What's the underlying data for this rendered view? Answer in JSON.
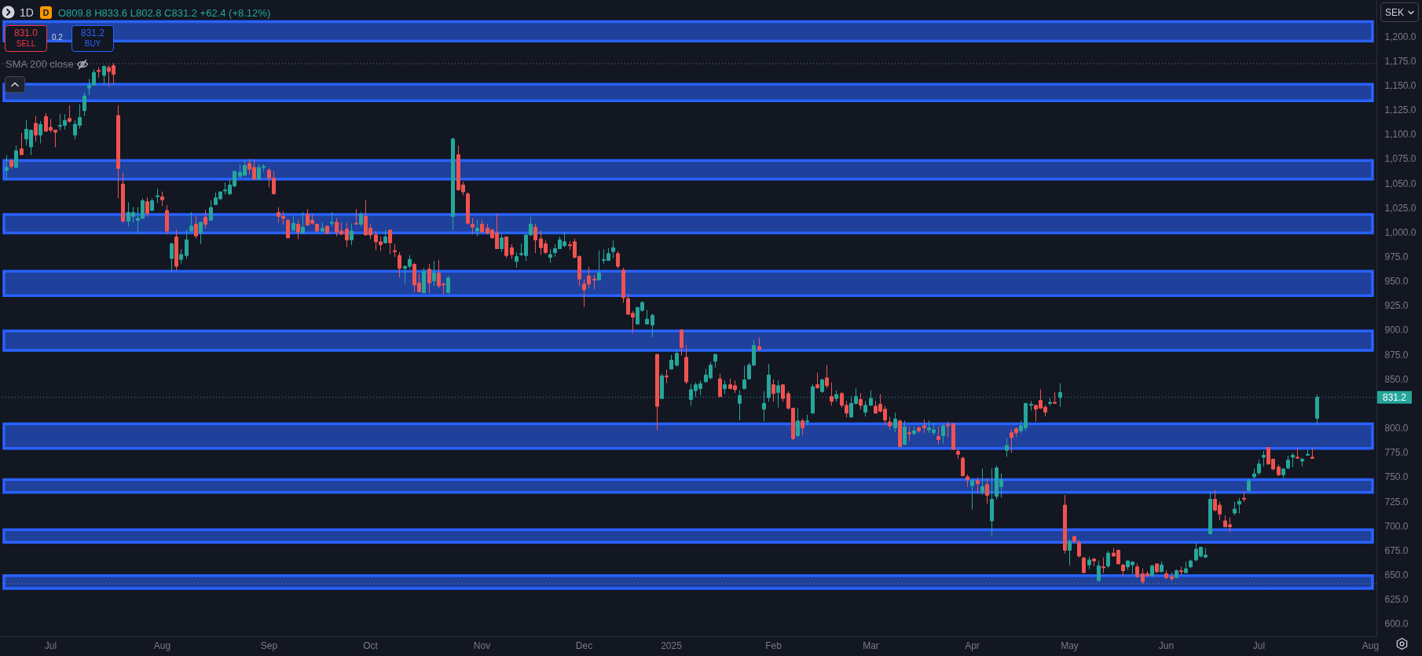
{
  "chart_data": {
    "type": "candlestick",
    "title": "1D",
    "subtitle": "O809.8 H833.6 L802.8 C831.2 +62.4 (+8.12%)",
    "annotations": [
      "D",
      "831.0",
      "SELL",
      "0.2",
      "831.2",
      "BUY",
      "SMA 200 close",
      "SEK"
    ],
    "categories": [
      null,
      null,
      null,
      null,
      null,
      null,
      null,
      null,
      null,
      "Jul",
      null,
      null,
      null,
      null,
      null,
      null,
      null,
      null,
      null,
      null,
      null,
      null,
      null,
      null,
      null,
      null,
      null,
      null,
      null,
      null,
      null,
      null,
      "Aug",
      null,
      null,
      null,
      null,
      null,
      null,
      null,
      null,
      null,
      null,
      null,
      null,
      null,
      null,
      null,
      null,
      null,
      null,
      null,
      null,
      null,
      "Sep",
      null,
      null,
      null,
      null,
      null,
      null,
      null,
      null,
      null,
      null,
      null,
      null,
      null,
      null,
      null,
      null,
      null,
      null,
      null,
      null,
      "Oct",
      null,
      null,
      null,
      null,
      null,
      null,
      null,
      null,
      null,
      null,
      null,
      null,
      null,
      null,
      null,
      null,
      null,
      null,
      null,
      null,
      null,
      null,
      "Nov",
      null,
      null,
      null,
      null,
      null,
      null,
      null,
      null,
      null,
      null,
      null,
      null,
      null,
      null,
      null,
      null,
      null,
      null,
      null,
      null,
      "Dec",
      null,
      null,
      null,
      null,
      null,
      null,
      null,
      null,
      null,
      null,
      null,
      null,
      null,
      null,
      null,
      null,
      null,
      "2025",
      null,
      null,
      null,
      null,
      null,
      null,
      null,
      null,
      null,
      null,
      null,
      null,
      null,
      null,
      null,
      null,
      null,
      null,
      null,
      null,
      "Feb",
      null,
      null,
      null,
      null,
      null,
      null,
      null,
      null,
      null,
      null,
      null,
      null,
      null,
      null,
      null,
      null,
      null,
      null,
      null,
      "Mar",
      null,
      null,
      null,
      null,
      null,
      null,
      null,
      null,
      null,
      null,
      null,
      null,
      null,
      null,
      null,
      null,
      null,
      null,
      null,
      null,
      "Apr",
      null,
      null,
      null,
      null,
      null,
      null,
      null,
      null,
      null,
      null,
      null,
      null,
      null,
      null,
      null,
      null,
      null,
      null,
      null,
      "May",
      null,
      null,
      null,
      null,
      null,
      null,
      null,
      null,
      null,
      null,
      null,
      null,
      null,
      null,
      null,
      null,
      null,
      null,
      null,
      "Jun",
      null,
      null,
      null,
      null,
      null,
      null,
      null,
      null,
      null,
      null,
      null,
      null,
      null,
      null,
      null,
      null,
      null,
      null,
      "Jul",
      null,
      null,
      null,
      null,
      null,
      null,
      null,
      null,
      null,
      null,
      null,
      null,
      null,
      null,
      null,
      null,
      null,
      null,
      null,
      null,
      null,
      null,
      "Aug"
    ],
    "ohlc": [
      [
        1063,
        1078,
        1054,
        1066
      ],
      [
        1073,
        1074,
        1065,
        1067
      ],
      [
        1066,
        1088,
        1066,
        1083
      ],
      [
        1085,
        1101,
        1079,
        1079
      ],
      [
        1095,
        1114,
        1089,
        1105
      ],
      [
        1087,
        1104,
        1079,
        1104
      ],
      [
        1111,
        1118,
        1093,
        1099
      ],
      [
        1099,
        1113,
        1091,
        1110
      ],
      [
        1118,
        1121,
        1103,
        1103
      ],
      [
        1107,
        1115,
        1102,
        1104
      ],
      [
        1104,
        1104,
        1087,
        1102
      ],
      [
        1108,
        1120,
        1104,
        1109
      ],
      [
        1109,
        1120,
        1105,
        1114
      ],
      [
        1116,
        1129,
        1112,
        1113
      ],
      [
        1099,
        1114,
        1095,
        1110
      ],
      [
        1109,
        1130,
        1106,
        1117
      ],
      [
        1124,
        1142,
        1119,
        1139
      ],
      [
        1147,
        1156,
        1140,
        1150
      ],
      [
        1150,
        1166,
        1150,
        1163
      ],
      [
        1165,
        1168,
        1158,
        1164
      ],
      [
        1160,
        1170,
        1151,
        1169
      ],
      [
        1168,
        1170,
        1149,
        1164
      ],
      [
        1170,
        1172,
        1152,
        1161
      ],
      [
        1119,
        1129,
        1035,
        1065
      ],
      [
        1049,
        1060,
        1010,
        1011
      ],
      [
        1011,
        1030,
        1006,
        1020
      ],
      [
        1016,
        1025,
        1010,
        1020
      ],
      [
        1012,
        1025,
        999,
        1014
      ],
      [
        1014,
        1034,
        1014,
        1032
      ],
      [
        1031,
        1035,
        1016,
        1019
      ],
      [
        1022,
        1034,
        1022,
        1032
      ],
      [
        1036,
        1044,
        1030,
        1037
      ],
      [
        1036,
        1041,
        1027,
        1033
      ],
      [
        1022,
        1027,
        998,
        1001
      ],
      [
        973,
        989,
        960,
        988
      ],
      [
        995,
        1002,
        961,
        965
      ],
      [
        972,
        982,
        968,
        977
      ],
      [
        976,
        1002,
        973,
        992
      ],
      [
        1001,
        1020,
        1001,
        1006
      ],
      [
        1008,
        1016,
        994,
        996
      ],
      [
        999,
        1010,
        988,
        1010
      ],
      [
        1015,
        1022,
        1004,
        1008
      ],
      [
        1012,
        1032,
        1012,
        1025
      ],
      [
        1028,
        1040,
        1028,
        1035
      ],
      [
        1034,
        1041,
        1033,
        1041
      ],
      [
        1042,
        1050,
        1039,
        1043
      ],
      [
        1039,
        1053,
        1038,
        1048
      ],
      [
        1047,
        1062,
        1046,
        1062
      ],
      [
        1057,
        1069,
        1055,
        1061
      ],
      [
        1058,
        1073,
        1058,
        1068
      ],
      [
        1070,
        1074,
        1059,
        1064
      ],
      [
        1066,
        1073,
        1054,
        1054
      ],
      [
        1054,
        1069,
        1054,
        1066
      ],
      [
        1066,
        1069,
        1062,
        1067
      ],
      [
        1063,
        1065,
        1046,
        1055
      ],
      [
        1055,
        1062,
        1039,
        1039
      ],
      [
        1020,
        1025,
        1010,
        1016
      ],
      [
        1016,
        1021,
        1008,
        1014
      ],
      [
        1012,
        1013,
        994,
        994
      ],
      [
        1002,
        1016,
        1001,
        1009
      ],
      [
        1008,
        1012,
        993,
        1000
      ],
      [
        999,
        1020,
        999,
        1005
      ],
      [
        1018,
        1023,
        1007,
        1007
      ],
      [
        1012,
        1018,
        1008,
        1009
      ],
      [
        1008,
        1008,
        1001,
        1001
      ],
      [
        1001,
        1009,
        1001,
        1004
      ],
      [
        1006,
        1006,
        998,
        999
      ],
      [
        1009,
        1020,
        1006,
        1010
      ],
      [
        1010,
        1014,
        996,
        1000
      ],
      [
        1001,
        1009,
        997,
        998
      ],
      [
        1003,
        1009,
        985,
        992
      ],
      [
        992,
        1008,
        987,
        1001
      ],
      [
        1009,
        1023,
        1008,
        1008
      ],
      [
        1008,
        1020,
        1006,
        1018
      ],
      [
        1016,
        1032,
        997,
        997
      ],
      [
        1004,
        1008,
        993,
        997
      ],
      [
        997,
        1001,
        982,
        990
      ],
      [
        990,
        995,
        981,
        987
      ],
      [
        989,
        1002,
        989,
        995
      ],
      [
        1002,
        1002,
        978,
        989
      ],
      [
        981,
        987,
        975,
        980
      ],
      [
        976,
        979,
        954,
        963
      ],
      [
        963,
        965,
        948,
        965
      ],
      [
        965,
        976,
        963,
        972
      ],
      [
        967,
        968,
        939,
        946
      ],
      [
        948,
        957,
        939,
        939
      ],
      [
        938,
        963,
        938,
        960
      ],
      [
        962,
        967,
        938,
        948
      ],
      [
        950,
        970,
        945,
        958
      ],
      [
        958,
        971,
        943,
        945
      ],
      [
        947,
        948,
        937,
        946
      ],
      [
        938,
        955,
        938,
        953
      ],
      [
        1016,
        1096,
        1002,
        1095
      ],
      [
        1079,
        1088,
        1043,
        1043
      ],
      [
        1048,
        1051,
        1038,
        1041
      ],
      [
        1039,
        1040,
        1008,
        1009
      ],
      [
        1008,
        1014,
        998,
        1005
      ],
      [
        1001,
        1012,
        996,
        1004
      ],
      [
        1008,
        1012,
        1000,
        1000
      ],
      [
        1004,
        1008,
        998,
        999
      ],
      [
        1002,
        1003,
        994,
        994
      ],
      [
        999,
        1018,
        983,
        983
      ],
      [
        983,
        997,
        980,
        994
      ],
      [
        995,
        995,
        974,
        976
      ],
      [
        984,
        987,
        973,
        977
      ],
      [
        970,
        979,
        964,
        975
      ],
      [
        977,
        988,
        976,
        978
      ],
      [
        976,
        997,
        971,
        997
      ],
      [
        997,
        1015,
        997,
        1008
      ],
      [
        1005,
        1008,
        979,
        992
      ],
      [
        993,
        1001,
        977,
        984
      ],
      [
        988,
        991,
        978,
        979
      ],
      [
        974,
        982,
        969,
        977
      ],
      [
        979,
        987,
        975,
        983
      ],
      [
        983,
        995,
        983,
        992
      ],
      [
        986,
        1000,
        985,
        990
      ],
      [
        987,
        990,
        982,
        986
      ],
      [
        990,
        993,
        974,
        974
      ],
      [
        975,
        976,
        945,
        952
      ],
      [
        947,
        951,
        924,
        941
      ],
      [
        955,
        964,
        943,
        947
      ],
      [
        952,
        956,
        942,
        951
      ],
      [
        951,
        981,
        951,
        958
      ],
      [
        971,
        982,
        968,
        972
      ],
      [
        971,
        983,
        971,
        978
      ],
      [
        980,
        991,
        974,
        984
      ],
      [
        978,
        980,
        963,
        965
      ],
      [
        961,
        963,
        928,
        933
      ],
      [
        932,
        936,
        916,
        916
      ],
      [
        917,
        919,
        897,
        913
      ],
      [
        906,
        923,
        906,
        923
      ],
      [
        920,
        929,
        919,
        928
      ],
      [
        906,
        920,
        906,
        911
      ],
      [
        905,
        916,
        893,
        915
      ],
      [
        875,
        875,
        798,
        822
      ],
      [
        830,
        855,
        830,
        853
      ],
      [
        853,
        859,
        846,
        852
      ],
      [
        860,
        874,
        860,
        869
      ],
      [
        864,
        879,
        863,
        876
      ],
      [
        900,
        900,
        874,
        882
      ],
      [
        872,
        884,
        845,
        847
      ],
      [
        829,
        844,
        823,
        839
      ],
      [
        838,
        846,
        832,
        844
      ],
      [
        840,
        848,
        834,
        845
      ],
      [
        847,
        860,
        847,
        854
      ],
      [
        851,
        867,
        850,
        864
      ],
      [
        868,
        875,
        862,
        875
      ],
      [
        850,
        855,
        832,
        832
      ],
      [
        840,
        848,
        835,
        844
      ],
      [
        844,
        850,
        840,
        840
      ],
      [
        843,
        848,
        836,
        839
      ],
      [
        825,
        838,
        808,
        833
      ],
      [
        840,
        863,
        840,
        849
      ],
      [
        850,
        866,
        850,
        864
      ],
      [
        864,
        889,
        864,
        884
      ],
      [
        883,
        892,
        879,
        880
      ],
      [
        819,
        837,
        807,
        825
      ],
      [
        831,
        865,
        827,
        854
      ],
      [
        844,
        849,
        827,
        835
      ],
      [
        836,
        848,
        821,
        843
      ],
      [
        844,
        844,
        827,
        830
      ],
      [
        835,
        837,
        819,
        820
      ],
      [
        820,
        820,
        788,
        789
      ],
      [
        792,
        820,
        791,
        807
      ],
      [
        807,
        809,
        793,
        800
      ],
      [
        806,
        813,
        803,
        807
      ],
      [
        815,
        844,
        815,
        842
      ],
      [
        844,
        856,
        840,
        841
      ],
      [
        837,
        850,
        836,
        849
      ],
      [
        851,
        864,
        841,
        843
      ],
      [
        832,
        846,
        823,
        827
      ],
      [
        830,
        838,
        827,
        834
      ],
      [
        835,
        836,
        821,
        823
      ],
      [
        823,
        827,
        811,
        815
      ],
      [
        811,
        832,
        811,
        825
      ],
      [
        825,
        840,
        824,
        832
      ],
      [
        829,
        835,
        819,
        823
      ],
      [
        816,
        827,
        812,
        823
      ],
      [
        823,
        838,
        823,
        830
      ],
      [
        822,
        827,
        815,
        815
      ],
      [
        824,
        834,
        816,
        817
      ],
      [
        819,
        822,
        803,
        808
      ],
      [
        806,
        811,
        798,
        802
      ],
      [
        800,
        815,
        796,
        809
      ],
      [
        807,
        808,
        780,
        781
      ],
      [
        783,
        807,
        783,
        801
      ],
      [
        795,
        801,
        787,
        794
      ],
      [
        794,
        801,
        793,
        797
      ],
      [
        800,
        801,
        795,
        797
      ],
      [
        802,
        808,
        795,
        800
      ],
      [
        798,
        807,
        795,
        800
      ],
      [
        795,
        805,
        793,
        798
      ],
      [
        791,
        801,
        783,
        788
      ],
      [
        792,
        803,
        784,
        802
      ],
      [
        803,
        806,
        791,
        802
      ],
      [
        804,
        805,
        778,
        778
      ],
      [
        776,
        778,
        769,
        773
      ],
      [
        769,
        770,
        751,
        751
      ],
      [
        750,
        752,
        740,
        747
      ],
      [
        741,
        748,
        717,
        746
      ],
      [
        746,
        749,
        734,
        743
      ],
      [
        734,
        758,
        732,
        740
      ],
      [
        742,
        748,
        723,
        731
      ],
      [
        705,
        758,
        690,
        727
      ],
      [
        730,
        761,
        727,
        759
      ],
      [
        740,
        753,
        729,
        747
      ],
      [
        777,
        789,
        771,
        782
      ],
      [
        795,
        798,
        775,
        790
      ],
      [
        799,
        800,
        791,
        795
      ],
      [
        797,
        807,
        795,
        802
      ],
      [
        800,
        825,
        797,
        825
      ],
      [
        823,
        827,
        818,
        824
      ],
      [
        823,
        823,
        807,
        819
      ],
      [
        828,
        839,
        820,
        820
      ],
      [
        821,
        823,
        812,
        816
      ],
      [
        825,
        830,
        823,
        826
      ],
      [
        826,
        836,
        825,
        825
      ],
      [
        831,
        845,
        822,
        836
      ],
      [
        721,
        731,
        672,
        675
      ],
      [
        675,
        686,
        660,
        684
      ],
      [
        689,
        689,
        683,
        684
      ],
      [
        683,
        685,
        668,
        669
      ],
      [
        667,
        668,
        652,
        652
      ],
      [
        660,
        668,
        656,
        665
      ],
      [
        666,
        667,
        659,
        664
      ],
      [
        644,
        664,
        643,
        659
      ],
      [
        658,
        667,
        652,
        657
      ],
      [
        659,
        674,
        657,
        672
      ],
      [
        672,
        677,
        669,
        669
      ],
      [
        675,
        675,
        661,
        661
      ],
      [
        660,
        660,
        649,
        654
      ],
      [
        658,
        664,
        655,
        664
      ],
      [
        660,
        663,
        651,
        663
      ],
      [
        658,
        661,
        647,
        648
      ],
      [
        651,
        656,
        641,
        643
      ],
      [
        651,
        653,
        648,
        649
      ],
      [
        649,
        660,
        648,
        659
      ],
      [
        661,
        661,
        652,
        653
      ],
      [
        653,
        663,
        653,
        660
      ],
      [
        651,
        654,
        646,
        647
      ],
      [
        648,
        652,
        644,
        646
      ],
      [
        647,
        655,
        647,
        654
      ],
      [
        654,
        658,
        650,
        653
      ],
      [
        652,
        663,
        652,
        656
      ],
      [
        658,
        665,
        657,
        664
      ],
      [
        665,
        682,
        664,
        676
      ],
      [
        669,
        678,
        668,
        678
      ],
      [
        668,
        677,
        667,
        670
      ],
      [
        692,
        734,
        691,
        727
      ],
      [
        727,
        736,
        715,
        716
      ],
      [
        721,
        724,
        706,
        712
      ],
      [
        705,
        710,
        699,
        699
      ],
      [
        701,
        708,
        694,
        699
      ],
      [
        713,
        724,
        711,
        717
      ],
      [
        722,
        728,
        713,
        725
      ],
      [
        728,
        735,
        725,
        727
      ],
      [
        736,
        748,
        735,
        746
      ],
      [
        750,
        758,
        748,
        753
      ],
      [
        754,
        767,
        752,
        763
      ],
      [
        770,
        776,
        761,
        772
      ],
      [
        780,
        780,
        763,
        763
      ],
      [
        768,
        768,
        757,
        758
      ],
      [
        760,
        762,
        751,
        752
      ],
      [
        752,
        758,
        749,
        758
      ],
      [
        759,
        771,
        758,
        767
      ],
      [
        770,
        774,
        760,
        772
      ],
      [
        770,
        779,
        769,
        769
      ],
      [
        766,
        769,
        761,
        768
      ],
      [
        772,
        777,
        772,
        773
      ],
      [
        770,
        780,
        768.8,
        768.8
      ],
      [
        809.8,
        833.6,
        802.8,
        831.2
      ],
      null,
      null,
      null,
      null,
      null,
      null,
      null,
      null,
      null,
      null,
      null
    ],
    "colors": [
      "#26a69a",
      "#ef5350",
      "#26a69a",
      "#ef5350",
      "#26a69a",
      "#26a69a",
      "#ef5350",
      "#26a69a",
      "#ef5350",
      "#ef5350",
      "#ef5350",
      "#26a69a",
      "#26a69a",
      "#ef5350",
      "#26a69a",
      "#26a69a",
      "#26a69a",
      "#26a69a",
      "#26a69a",
      "#ef5350",
      "#26a69a",
      "#ef5350",
      "#ef5350",
      "#ef5350",
      "#ef5350",
      "#26a69a",
      "#26a69a",
      "#26a69a",
      "#26a69a",
      "#ef5350",
      "#26a69a",
      "#26a69a",
      "#ef5350",
      "#ef5350",
      "#26a69a",
      "#ef5350",
      "#26a69a",
      "#26a69a",
      "#26a69a",
      "#ef5350",
      "#26a69a",
      "#ef5350",
      "#26a69a",
      "#26a69a",
      "#26a69a",
      "#26a69a",
      "#26a69a",
      "#26a69a",
      "#26a69a",
      "#26a69a",
      "#ef5350",
      "#ef5350",
      "#26a69a",
      "#26a69a",
      "#ef5350",
      "#ef5350",
      "#ef5350",
      "#ef5350",
      "#ef5350",
      "#26a69a",
      "#ef5350",
      "#26a69a",
      "#ef5350",
      "#ef5350",
      "#ef5350",
      "#26a69a",
      "#ef5350",
      "#26a69a",
      "#ef5350",
      "#ef5350",
      "#ef5350",
      "#26a69a",
      "#ef5350",
      "#26a69a",
      "#ef5350",
      "#ef5350",
      "#ef5350",
      "#ef5350",
      "#26a69a",
      "#ef5350",
      "#ef5350",
      "#ef5350",
      "#26a69a",
      "#26a69a",
      "#ef5350",
      "#ef5350",
      "#26a69a",
      "#ef5350",
      "#26a69a",
      "#ef5350",
      "#ef5350",
      "#26a69a",
      "#26a69a",
      "#ef5350",
      "#ef5350",
      "#ef5350",
      "#ef5350",
      "#26a69a",
      "#ef5350",
      "#ef5350",
      "#ef5350",
      "#ef5350",
      "#26a69a",
      "#ef5350",
      "#ef5350",
      "#26a69a",
      "#26a69a",
      "#26a69a",
      "#26a69a",
      "#ef5350",
      "#ef5350",
      "#ef5350",
      "#26a69a",
      "#26a69a",
      "#26a69a",
      "#26a69a",
      "#ef5350",
      "#ef5350",
      "#ef5350",
      "#ef5350",
      "#ef5350",
      "#ef5350",
      "#26a69a",
      "#26a69a",
      "#26a69a",
      "#26a69a",
      "#ef5350",
      "#ef5350",
      "#ef5350",
      "#ef5350",
      "#26a69a",
      "#26a69a",
      "#26a69a",
      "#26a69a",
      "#ef5350",
      "#26a69a",
      "#ef5350",
      "#26a69a",
      "#26a69a",
      "#ef5350",
      "#ef5350",
      "#26a69a",
      "#26a69a",
      "#26a69a",
      "#26a69a",
      "#26a69a",
      "#26a69a",
      "#ef5350",
      "#26a69a",
      "#ef5350",
      "#ef5350",
      "#26a69a",
      "#26a69a",
      "#26a69a",
      "#26a69a",
      "#ef5350",
      "#26a69a",
      "#26a69a",
      "#ef5350",
      "#26a69a",
      "#ef5350",
      "#ef5350",
      "#ef5350",
      "#26a69a",
      "#ef5350",
      "#26a69a",
      "#26a69a",
      "#ef5350",
      "#26a69a",
      "#ef5350",
      "#ef5350",
      "#26a69a",
      "#ef5350",
      "#ef5350",
      "#26a69a",
      "#26a69a",
      "#ef5350",
      "#26a69a",
      "#26a69a",
      "#ef5350",
      "#ef5350",
      "#ef5350",
      "#ef5350",
      "#26a69a",
      "#ef5350",
      "#26a69a",
      "#ef5350",
      "#26a69a",
      "#ef5350",
      "#ef5350",
      "#26a69a",
      "#26a69a",
      "#ef5350",
      "#26a69a",
      "#ef5350",
      "#ef5350",
      "#ef5350",
      "#ef5350",
      "#ef5350",
      "#26a69a",
      "#ef5350",
      "#26a69a",
      "#ef5350",
      "#26a69a",
      "#26a69a",
      "#26a69a",
      "#26a69a",
      "#ef5350",
      "#ef5350",
      "#26a69a",
      "#26a69a",
      "#26a69a",
      "#ef5350",
      "#ef5350",
      "#ef5350",
      "#26a69a",
      "#ef5350",
      "#26a69a",
      "#ef5350",
      "#26a69a",
      "#ef5350",
      "#ef5350",
      "#ef5350",
      "#26a69a",
      "#ef5350",
      "#26a69a",
      "#ef5350",
      "#26a69a",
      "#ef5350",
      "#ef5350",
      "#ef5350",
      "#26a69a",
      "#26a69a",
      "#ef5350",
      "#ef5350",
      "#ef5350",
      "#26a69a",
      "#ef5350",
      "#26a69a",
      "#ef5350",
      "#ef5350",
      "#26a69a",
      "#ef5350",
      "#26a69a",
      "#26a69a",
      "#26a69a",
      "#26a69a",
      "#26a69a",
      "#26a69a",
      "#ef5350",
      "#ef5350",
      "#ef5350",
      "#ef5350",
      "#26a69a",
      "#26a69a",
      "#ef5350",
      "#26a69a",
      "#26a69a",
      "#26a69a",
      "#26a69a",
      "#ef5350",
      "#ef5350",
      "#ef5350",
      "#26a69a",
      "#26a69a",
      "#26a69a",
      "#ef5350",
      "#26a69a",
      "#26a69a",
      "#ef5350",
      "#26a69a",
      null,
      null,
      null,
      null,
      null,
      null,
      null,
      null,
      null,
      null,
      null
    ],
    "ylim": [
      587,
      1237
    ],
    "yticks": [
      {
        "value": 600,
        "label": "600.0"
      },
      {
        "value": 625,
        "label": "625.0"
      },
      {
        "value": 650,
        "label": "650.0"
      },
      {
        "value": 675,
        "label": "675.0"
      },
      {
        "value": 700,
        "label": "700.0"
      },
      {
        "value": 725,
        "label": "725.0"
      },
      {
        "value": 750,
        "label": "750.0"
      },
      {
        "value": 775,
        "label": "775.0"
      },
      {
        "value": 800,
        "label": "800.0"
      },
      {
        "value": 850,
        "label": "850.0"
      },
      {
        "value": 875,
        "label": "875.0"
      },
      {
        "value": 900,
        "label": "900.0"
      },
      {
        "value": 925,
        "label": "925.0"
      },
      {
        "value": 950,
        "label": "950.0"
      },
      {
        "value": 975,
        "label": "975.0"
      },
      {
        "value": 1000,
        "label": "1,000.0"
      },
      {
        "value": 1025,
        "label": "1,025.0"
      },
      {
        "value": 1050,
        "label": "1,050.0"
      },
      {
        "value": 1075,
        "label": "1,075.0"
      },
      {
        "value": 1100,
        "label": "1,100.0"
      },
      {
        "value": 1125,
        "label": "1,125.0"
      },
      {
        "value": 1150,
        "label": "1,150.0"
      },
      {
        "value": 1175,
        "label": "1,175.0"
      },
      {
        "value": 1200,
        "label": "1,200.0"
      }
    ],
    "ref_lines": [
      {
        "axis": "y",
        "value": 1172,
        "color": "#787b86",
        "line_style": "dotted"
      },
      {
        "axis": "y",
        "value": 831.2,
        "label": "831.2",
        "color": "#26a69a",
        "line_style": "dotted"
      },
      {
        "axis": "y",
        "value": 641,
        "color": "#787b86",
        "line_style": "dotted"
      }
    ],
    "bands": [
      {
        "axis": "y",
        "from": 1195,
        "to": 1215,
        "color": "#2962ff"
      },
      {
        "axis": "y",
        "from": 1134,
        "to": 1151,
        "color": "#2962ff"
      },
      {
        "axis": "y",
        "from": 1054,
        "to": 1073,
        "color": "#2962ff"
      },
      {
        "axis": "y",
        "from": 999,
        "to": 1018,
        "color": "#2962ff"
      },
      {
        "axis": "y",
        "from": 935,
        "to": 960,
        "color": "#2962ff"
      },
      {
        "axis": "y",
        "from": 879,
        "to": 899,
        "color": "#2962ff"
      },
      {
        "axis": "y",
        "from": 779,
        "to": 804,
        "color": "#2962ff"
      },
      {
        "axis": "y",
        "from": 734,
        "to": 747,
        "color": "#2962ff"
      },
      {
        "axis": "y",
        "from": 683,
        "to": 696,
        "color": "#2962ff"
      },
      {
        "axis": "y",
        "from": 636,
        "to": 649,
        "color": "#2962ff"
      }
    ]
  }
}
